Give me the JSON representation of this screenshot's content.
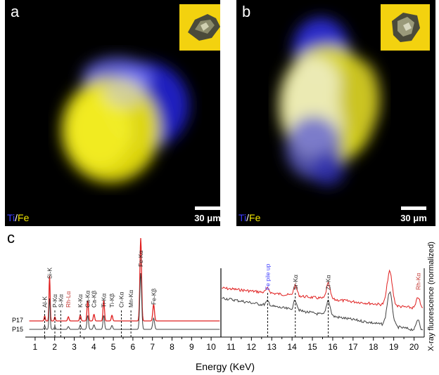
{
  "panels": {
    "a": {
      "letter": "a",
      "legend_ti": "Ti",
      "legend_sep": "/",
      "legend_fe": "Fe",
      "scale_label": "30 μm"
    },
    "b": {
      "letter": "b",
      "legend_ti": "Ti",
      "legend_sep": "/",
      "legend_fe": "Fe",
      "scale_label": "30 μm"
    },
    "c": {
      "letter": "c"
    }
  },
  "colors": {
    "ti_map": "#2020ff",
    "fe_map": "#f2e600",
    "inset_bg": "#f3d20f",
    "p17_line": "#e02020",
    "p15_line": "#404040",
    "annotation_red": "#c0302a",
    "annotation_blue": "#3a3aff"
  },
  "chart_data": {
    "type": "line",
    "xlabel": "Energy (KeV)",
    "ylabel": "X-ray fluorescence (normalized)",
    "series": [
      {
        "name": "P17"
      },
      {
        "name": "P15"
      }
    ],
    "x_ticks_left": [
      1,
      2,
      3,
      4,
      5,
      6,
      7,
      8,
      9,
      10
    ],
    "x_ticks_right": [
      11,
      12,
      13,
      14,
      15,
      16,
      17,
      18,
      19,
      20
    ],
    "xlim_left": [
      0.5,
      10.5
    ],
    "xlim_right": [
      10.5,
      20.5
    ],
    "peaks_left": [
      {
        "label": "Al-K",
        "x": 1.49,
        "color": "black",
        "dashed": true
      },
      {
        "label": "Si-K",
        "x": 1.74,
        "color": "black",
        "dashed": false
      },
      {
        "label": "P-Kα",
        "x": 2.01,
        "color": "black",
        "dashed": true
      },
      {
        "label": "S-Kα",
        "x": 2.31,
        "color": "black",
        "dashed": true
      },
      {
        "label": "Rh-Lα",
        "x": 2.7,
        "color": "red",
        "dashed": false
      },
      {
        "label": "K-Kα",
        "x": 3.31,
        "color": "black",
        "dashed": true
      },
      {
        "label": "Ca-Kα",
        "x": 3.69,
        "color": "black",
        "dashed": false
      },
      {
        "label": "Ca-Kβ",
        "x": 4.01,
        "color": "black",
        "dashed": false
      },
      {
        "label": "Ti-Kα",
        "x": 4.51,
        "color": "black",
        "dashed": false
      },
      {
        "label": "Ti-Kβ",
        "x": 4.93,
        "color": "black",
        "dashed": false
      },
      {
        "label": "Cr-Kα",
        "x": 5.41,
        "color": "black",
        "dashed": true
      },
      {
        "label": "Mn-Kα",
        "x": 5.9,
        "color": "black",
        "dashed": true
      },
      {
        "label": "Fe-Kα",
        "x": 6.4,
        "color": "black",
        "dashed": false
      },
      {
        "label": "Fe-Kβ",
        "x": 7.06,
        "color": "black",
        "dashed": false
      }
    ],
    "peaks_right": [
      {
        "label": "Fe pile up",
        "x": 12.8,
        "color": "blue",
        "dashed": true
      },
      {
        "label": "Sr-Kα",
        "x": 14.16,
        "color": "black",
        "dashed": true
      },
      {
        "label": "Zr-Kα",
        "x": 15.78,
        "color": "black",
        "dashed": true
      },
      {
        "label": "Rh-Kα",
        "x": 20.2,
        "color": "red",
        "dashed": false
      }
    ]
  }
}
